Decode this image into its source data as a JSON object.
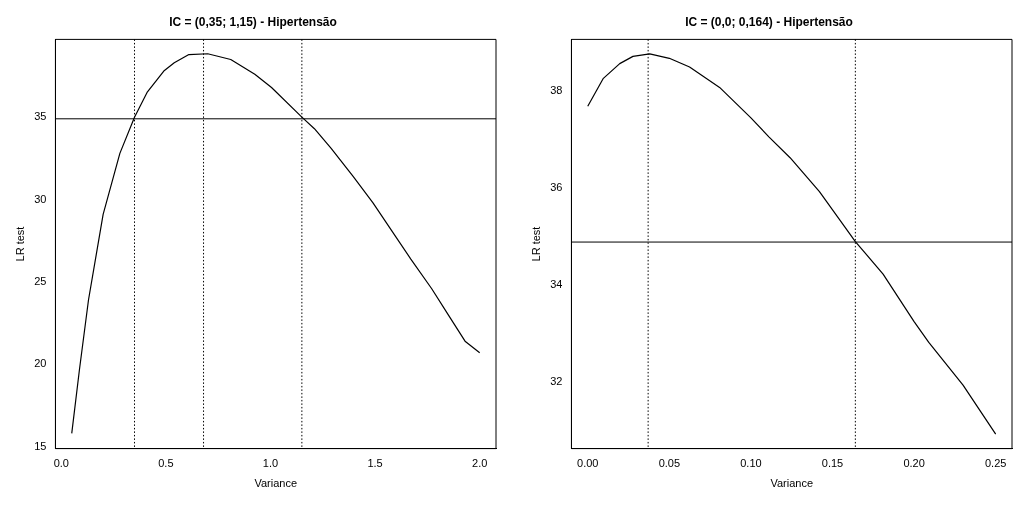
{
  "chart_data": [
    {
      "type": "line",
      "title": "IC = (0,35; 1,15) - Hipertensão",
      "xlabel": "Variance",
      "ylabel": "LR test",
      "x": [
        0.05,
        0.087,
        0.13,
        0.2,
        0.28,
        0.35,
        0.41,
        0.49,
        0.54,
        0.61,
        0.7,
        0.81,
        0.925,
        1.005,
        1.15,
        1.21,
        1.29,
        1.395,
        1.49,
        1.58,
        1.67,
        1.77,
        1.85,
        1.93,
        2.0
      ],
      "series": [
        {
          "color": "#000000",
          "values": [
            15.8,
            19.7,
            23.9,
            29.1,
            32.8,
            35.0,
            36.5,
            37.8,
            38.3,
            38.8,
            38.85,
            38.5,
            37.6,
            36.8,
            35.0,
            34.3,
            33.1,
            31.4,
            29.8,
            28.1,
            26.4,
            24.6,
            23.0,
            21.4,
            20.7
          ]
        }
      ],
      "xlim": [
        -0.028,
        2.078
      ],
      "xticks": [
        {
          "value": 0,
          "label": "0.0"
        },
        0.5,
        {
          "value": 1,
          "label": "1.0"
        },
        1.5,
        {
          "value": 2,
          "label": "2.0"
        }
      ],
      "ylim": [
        14.88,
        39.72
      ],
      "yticks": [
        15,
        20,
        25,
        30,
        35
      ],
      "ref_lines": [
        {
          "axis": "x",
          "value": 0.35,
          "line_style": "dotted"
        },
        {
          "axis": "x",
          "value": 0.68,
          "line_style": "dotted"
        },
        {
          "axis": "x",
          "value": 1.15,
          "line_style": "dotted"
        },
        {
          "axis": "y",
          "value": 34.9,
          "line_style": "solid"
        }
      ],
      "grid": false,
      "legend": false,
      "marker": "none",
      "line_style": "solid"
    },
    {
      "type": "line",
      "title": "IC = (0,0; 0,164) - Hipertensão",
      "xlabel": "Variance",
      "ylabel": "LR test",
      "x": [
        0,
        0.0094,
        0.0196,
        0.0277,
        0.038,
        0.05,
        0.0624,
        0.0808,
        0.1,
        0.111,
        0.124,
        0.142,
        0.164,
        0.181,
        0.2,
        0.209,
        0.23,
        0.25
      ],
      "series": [
        {
          "color": "#000000",
          "values": [
            37.68,
            38.25,
            38.56,
            38.71,
            38.76,
            38.67,
            38.49,
            38.07,
            37.44,
            37.05,
            36.62,
            35.92,
            34.89,
            34.22,
            33.24,
            32.81,
            31.93,
            30.92
          ]
        }
      ],
      "xlim": [
        -0.01,
        0.26
      ],
      "xticks": [
        {
          "value": 0,
          "label": "0.00"
        },
        0.05,
        {
          "value": 0.1,
          "label": "0.10"
        },
        0.15,
        {
          "value": 0.2,
          "label": "0.20"
        },
        0.25
      ],
      "ylim": [
        30.62,
        39.06
      ],
      "yticks": [
        32,
        34,
        36,
        38
      ],
      "ref_lines": [
        {
          "axis": "x",
          "value": 0.037,
          "line_style": "dotted"
        },
        {
          "axis": "x",
          "value": 0.164,
          "line_style": "dotted"
        },
        {
          "axis": "y",
          "value": 34.88,
          "line_style": "solid"
        }
      ],
      "grid": false,
      "legend": false,
      "marker": "none",
      "line_style": "solid"
    }
  ]
}
